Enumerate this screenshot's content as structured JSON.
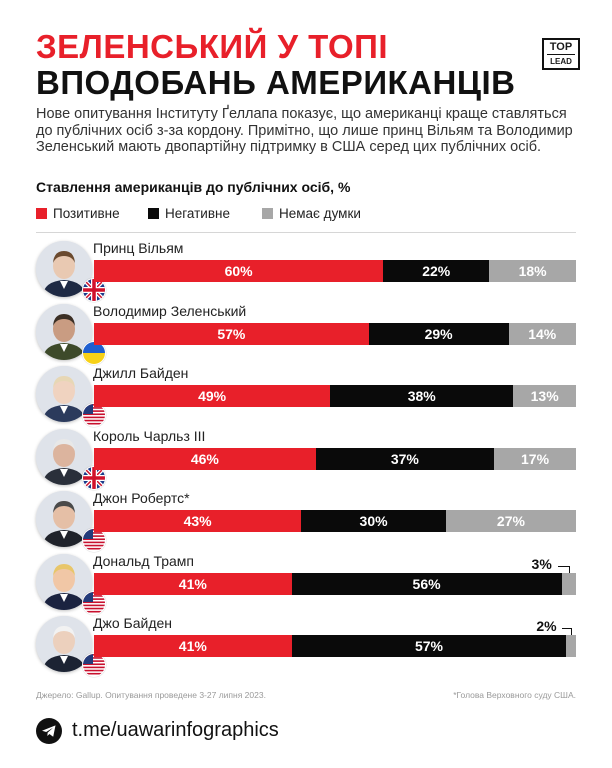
{
  "header": {
    "title_line1": "ЗЕЛЕНСЬКИЙ У ТОПІ",
    "title_line2": "ВПОДОБАНЬ АМЕРИКАНЦІВ",
    "logo_top": "TOP",
    "logo_bottom": "LEAD"
  },
  "intro": "Нове опитування Інституту Ґеллапа показує, що американці краще ставляться до публічних осіб з-за кордону. Примітно, що лише принц Вільям та Володимир Зеленський мають двопартійну підтримку в США серед цих публічних осіб.",
  "chart_data": {
    "type": "bar",
    "orientation": "horizontal",
    "stacked": true,
    "normalized_to": 100,
    "title": "Ставлення американців до публічних осіб, %",
    "legend_position": "top-left",
    "grid": false,
    "categories": [
      "Принц Вільям",
      "Володимир Зеленський",
      "Джилл Байден",
      "Король Чарльз III",
      "Джон Робертс*",
      "Дональд Трамп",
      "Джо Байден"
    ],
    "flags": [
      "uk",
      "ua",
      "us",
      "uk",
      "us",
      "us",
      "us"
    ],
    "series": [
      {
        "name": "Позитивне",
        "values": [
          60,
          57,
          49,
          46,
          43,
          41,
          41
        ]
      },
      {
        "name": "Негативне",
        "values": [
          22,
          29,
          38,
          37,
          30,
          56,
          57
        ]
      },
      {
        "name": "Немає думки",
        "values": [
          18,
          14,
          13,
          17,
          27,
          3,
          2
        ]
      }
    ],
    "value_suffix": "%"
  },
  "colors": {
    "positive": "#e8202a",
    "negative": "#0a0a0a",
    "no_opinion": "#a7a7a7",
    "accent": "#e8202a"
  },
  "footer": {
    "source": "Джерело: Gallup. Опитування проведене 3-27 липня 2023.",
    "note": "*Голова Верховного суду США.",
    "telegram_icon": "telegram-icon",
    "link": "t.me/uawarinfographics"
  }
}
